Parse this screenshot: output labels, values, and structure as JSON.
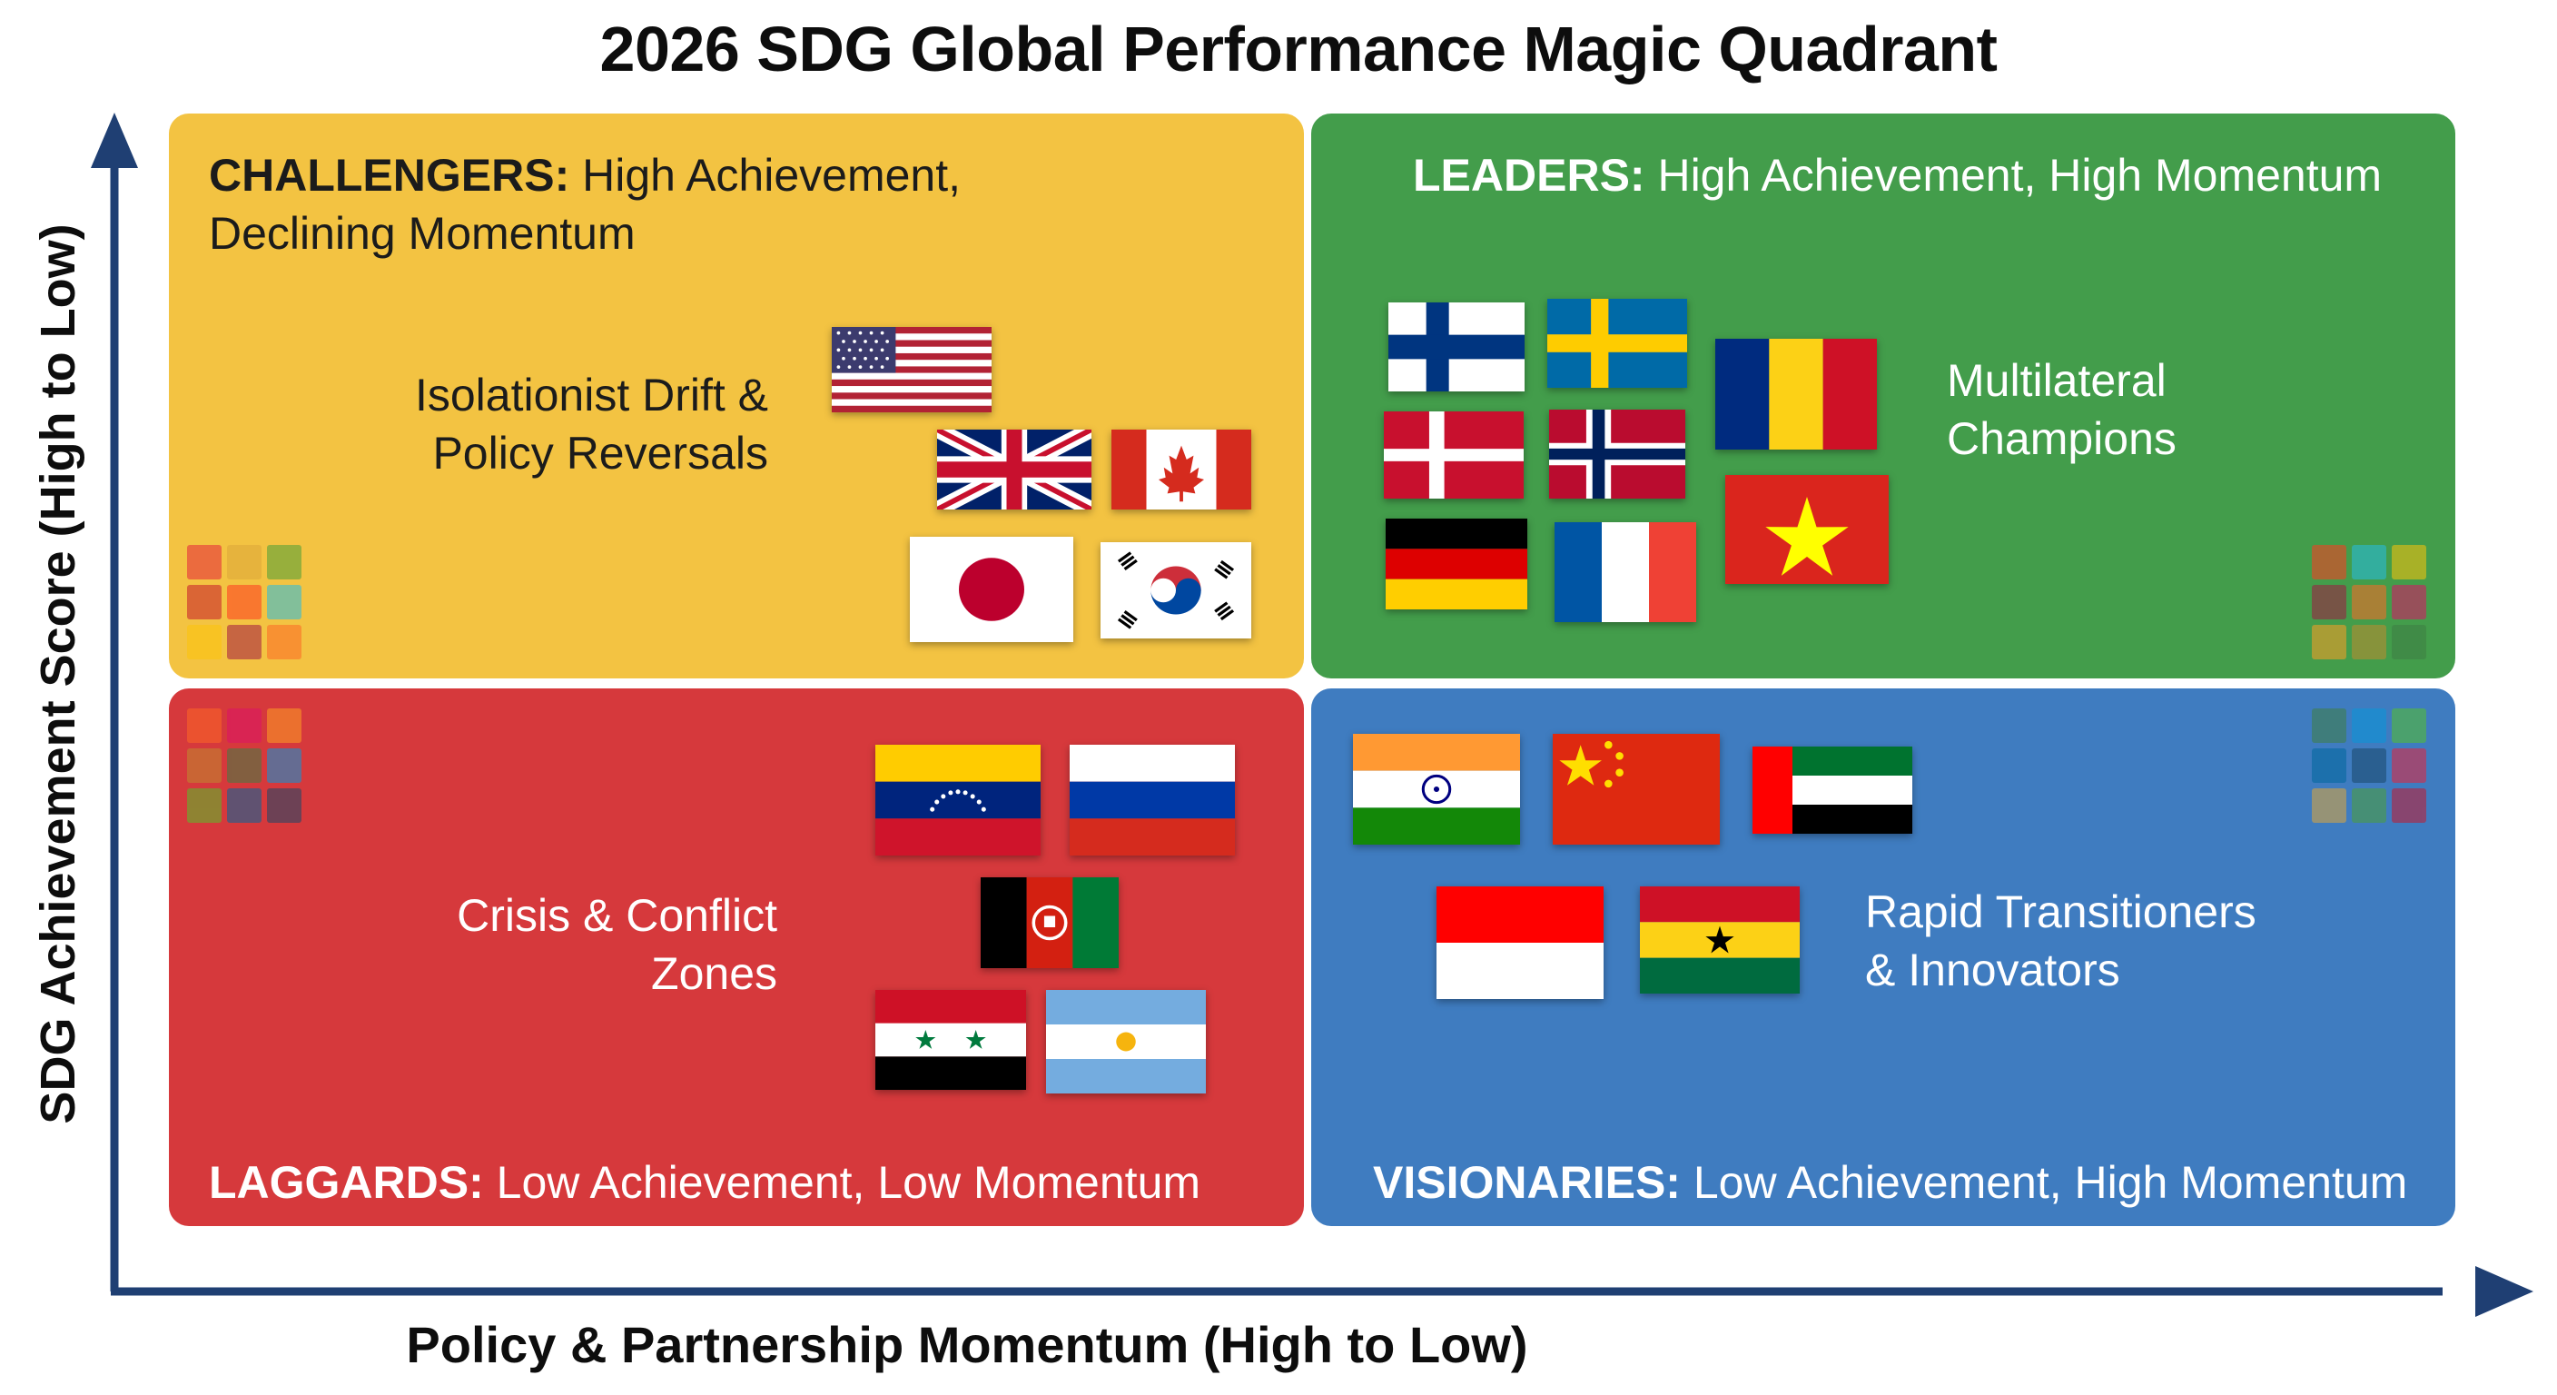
{
  "title": "2026 SDG Global Performance Magic Quadrant",
  "colors": {
    "challengers": "#f3c342",
    "leaders": "#439d4b",
    "laggards": "#d6393c",
    "visionaries": "#3f7cc0",
    "axis": "#1f3f73"
  },
  "chart_data": {
    "type": "quadrant",
    "title": "2026 SDG Global Performance Magic Quadrant",
    "xlabel": "Policy & Partnership Momentum (High to Low)",
    "ylabel": "SDG Achievement Score (High to Low)",
    "quadrants": [
      {
        "name": "CHALLENGERS",
        "description": "High Achievement, Declining Momentum",
        "group_label": "Isolationist Drift & Policy Reversals",
        "countries": [
          "United States",
          "United Kingdom",
          "Canada",
          "Japan",
          "South Korea"
        ]
      },
      {
        "name": "LEADERS",
        "description": "High Achievement, High Momentum",
        "group_label": "Multilateral Champions",
        "countries": [
          "Finland",
          "Sweden",
          "Romania",
          "Denmark",
          "Norway",
          "Germany",
          "France",
          "Vietnam"
        ]
      },
      {
        "name": "LAGGARDS",
        "description": "Low Achievement, Low Momentum",
        "group_label": "Crisis & Conflict Zones",
        "countries": [
          "Venezuela",
          "Russia",
          "Afghanistan",
          "Syria",
          "Argentina"
        ]
      },
      {
        "name": "VISIONARIES",
        "description": "Low Achievement, High Momentum",
        "group_label": "Rapid Transitioners & Innovators",
        "countries": [
          "India",
          "China",
          "United Arab Emirates",
          "Indonesia",
          "Ghana"
        ]
      }
    ]
  },
  "quadrants": {
    "challengers": {
      "name": "CHALLENGERS:",
      "desc_line1": " High Achievement,",
      "desc_line2": "Declining Momentum",
      "group_line1": "Isolationist Drift &",
      "group_line2": "Policy Reversals"
    },
    "leaders": {
      "name": "LEADERS:",
      "desc": " High Achievement, High Momentum",
      "group_line1": "Multilateral",
      "group_line2": "Champions"
    },
    "laggards": {
      "name": "LAGGARDS:",
      "desc": " Low Achievement, Low Momentum",
      "group_line1": "Crisis & Conflict",
      "group_line2": "Zones"
    },
    "visionaries": {
      "name": "VISIONARIES:",
      "desc": " Low Achievement, High Momentum",
      "group_line1": "Rapid Transitioners",
      "group_line2": "& Innovators"
    }
  },
  "sdg_tile_colors": [
    "#e5243b",
    "#dda63a",
    "#4c9f38",
    "#c5192d",
    "#ff3a21",
    "#26bde2",
    "#fcc30b",
    "#a21942",
    "#fd6925",
    "#dd1367",
    "#fd9d24",
    "#bf8b2e",
    "#3f7e44",
    "#0a97d9",
    "#56c02b",
    "#00689d",
    "#19486a"
  ]
}
